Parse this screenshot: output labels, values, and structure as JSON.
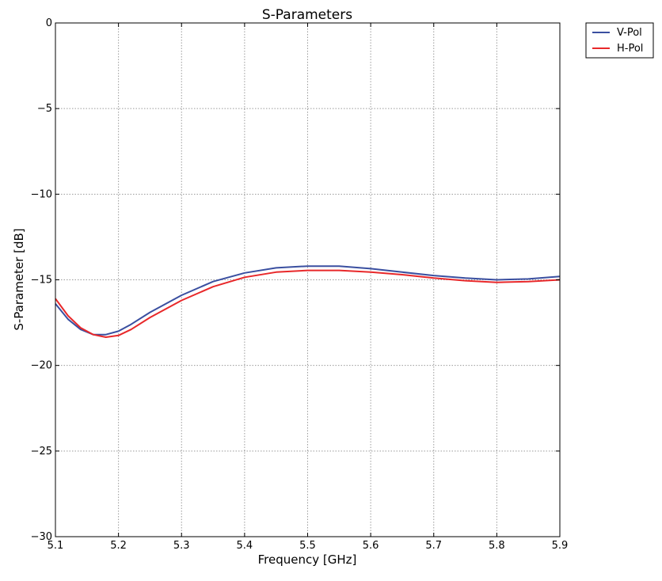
{
  "chart_data": {
    "type": "line",
    "title": "S-Parameters",
    "xlabel": "Frequency [GHz]",
    "ylabel": "S-Parameter [dB]",
    "xlim": [
      5.1,
      5.9
    ],
    "ylim": [
      -30,
      0
    ],
    "grid": true,
    "legend_position": "outside top-right",
    "x_ticks": [
      5.1,
      5.2,
      5.3,
      5.4,
      5.5,
      5.6,
      5.7,
      5.8,
      5.9
    ],
    "x_tick_labels": [
      "5.1",
      "5.2",
      "5.3",
      "5.4",
      "5.5",
      "5.6",
      "5.7",
      "5.8",
      "5.9"
    ],
    "y_ticks": [
      0,
      -5,
      -10,
      -15,
      -20,
      -25,
      -30
    ],
    "y_tick_labels": [
      "0",
      "−5",
      "−10",
      "−15",
      "−20",
      "−25",
      "−30"
    ],
    "x": [
      5.1,
      5.12,
      5.14,
      5.16,
      5.18,
      5.2,
      5.22,
      5.25,
      5.3,
      5.35,
      5.4,
      5.45,
      5.5,
      5.55,
      5.6,
      5.65,
      5.7,
      5.75,
      5.8,
      5.85,
      5.9
    ],
    "series": [
      {
        "name": "V-Pol",
        "color": "#3a4fa0",
        "values": [
          -16.4,
          -17.3,
          -17.9,
          -18.2,
          -18.2,
          -18.0,
          -17.6,
          -16.9,
          -15.9,
          -15.1,
          -14.6,
          -14.3,
          -14.2,
          -14.2,
          -14.35,
          -14.55,
          -14.75,
          -14.9,
          -15.0,
          -14.95,
          -14.8
        ]
      },
      {
        "name": "H-Pol",
        "color": "#e8282a",
        "values": [
          -16.1,
          -17.1,
          -17.8,
          -18.2,
          -18.35,
          -18.25,
          -17.9,
          -17.2,
          -16.2,
          -15.4,
          -14.85,
          -14.55,
          -14.45,
          -14.45,
          -14.55,
          -14.7,
          -14.9,
          -15.05,
          -15.15,
          -15.1,
          -15.0
        ]
      }
    ]
  }
}
